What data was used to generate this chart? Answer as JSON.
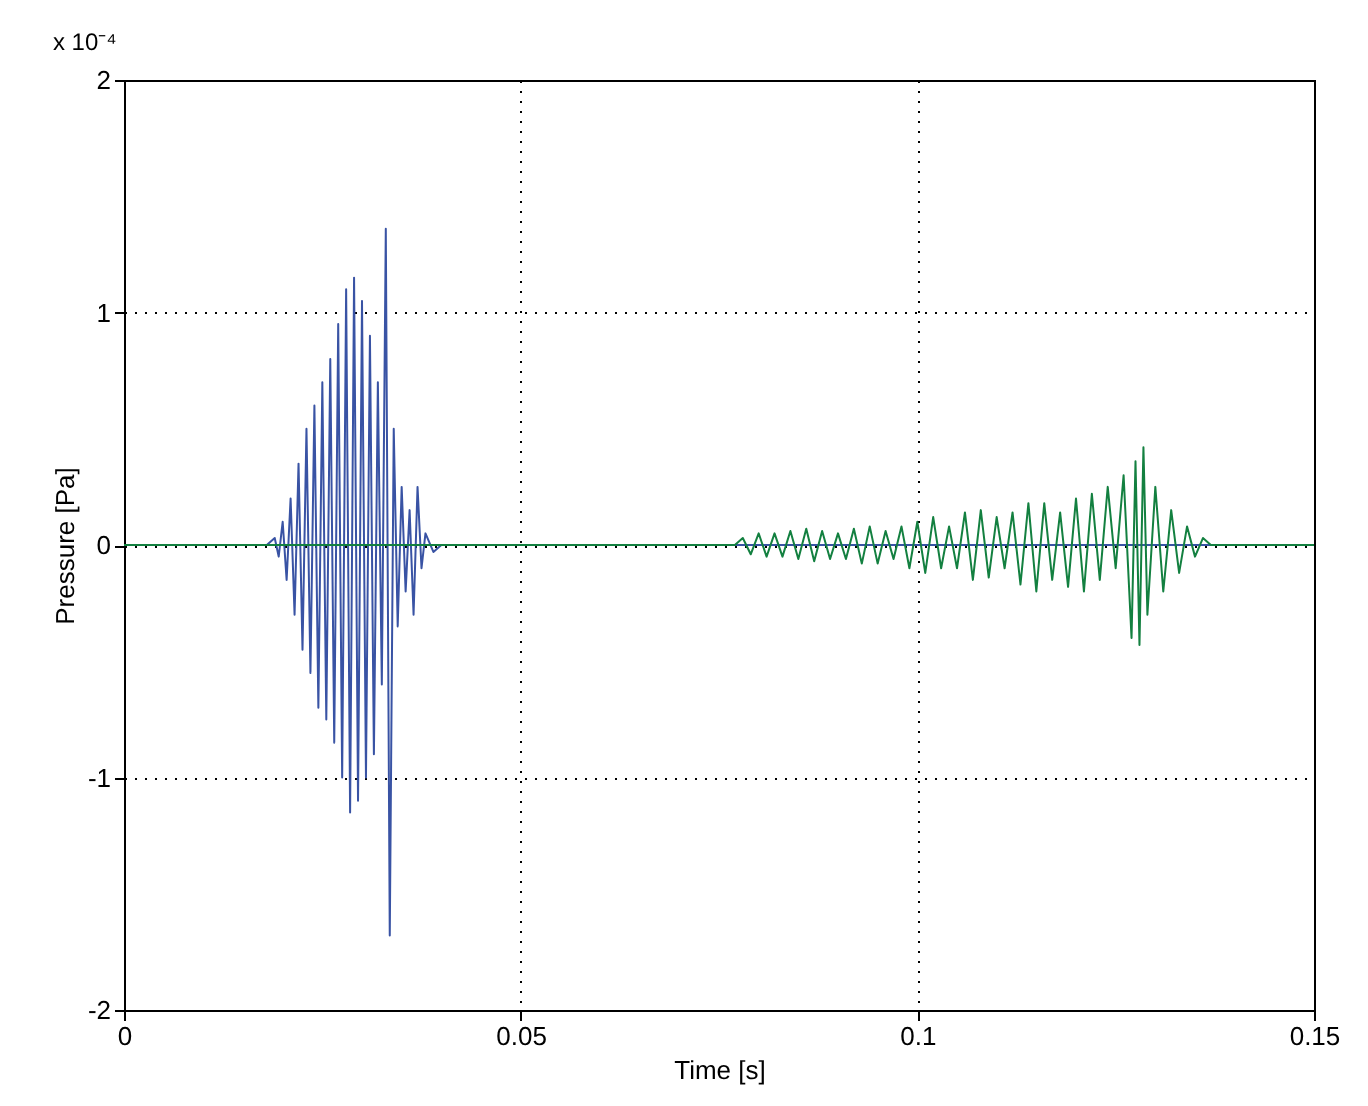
{
  "chart_data": {
    "type": "line",
    "xlabel": "Time [s]",
    "ylabel": "Pressure [Pa]",
    "annotations": [
      "x 10⁻⁴"
    ],
    "xlim": [
      0,
      0.15
    ],
    "xticks": [
      0,
      0.05,
      0.1,
      0.15
    ],
    "ylim": [
      -2,
      2
    ],
    "yticks": [
      -2,
      -1,
      0,
      1,
      2
    ],
    "grid": true,
    "legend": false,
    "line_style": "solid",
    "marker": "none",
    "series": [
      {
        "color": "#3953a4",
        "x": [
          0,
          0.01,
          0.018,
          0.019,
          0.0195,
          0.02,
          0.0205,
          0.021,
          0.0215,
          0.022,
          0.0225,
          0.023,
          0.0235,
          0.024,
          0.0245,
          0.025,
          0.0255,
          0.026,
          0.0265,
          0.027,
          0.0275,
          0.028,
          0.0285,
          0.029,
          0.0295,
          0.03,
          0.0305,
          0.031,
          0.0315,
          0.032,
          0.0325,
          0.033,
          0.0335,
          0.034,
          0.0345,
          0.035,
          0.0355,
          0.036,
          0.0365,
          0.037,
          0.0375,
          0.038,
          0.039,
          0.04,
          0.15
        ],
        "values": [
          0,
          0,
          0,
          0.03,
          -0.05,
          0.1,
          -0.15,
          0.2,
          -0.3,
          0.35,
          -0.45,
          0.5,
          -0.55,
          0.6,
          -0.7,
          0.7,
          -0.75,
          0.8,
          -0.85,
          0.95,
          -1.0,
          1.1,
          -1.15,
          1.15,
          -1.1,
          1.05,
          -1.0,
          0.9,
          -0.9,
          0.7,
          -0.6,
          1.36,
          -1.68,
          0.5,
          -0.35,
          0.25,
          -0.2,
          0.15,
          -0.3,
          0.25,
          -0.1,
          0.05,
          -0.03,
          0,
          0
        ]
      },
      {
        "color": "#138040",
        "x": [
          0,
          0.077,
          0.078,
          0.079,
          0.08,
          0.081,
          0.082,
          0.083,
          0.084,
          0.085,
          0.086,
          0.087,
          0.088,
          0.089,
          0.09,
          0.091,
          0.092,
          0.093,
          0.094,
          0.095,
          0.096,
          0.097,
          0.098,
          0.099,
          0.1,
          0.101,
          0.102,
          0.103,
          0.104,
          0.105,
          0.106,
          0.107,
          0.108,
          0.109,
          0.11,
          0.111,
          0.112,
          0.113,
          0.114,
          0.115,
          0.116,
          0.117,
          0.118,
          0.119,
          0.12,
          0.121,
          0.122,
          0.123,
          0.124,
          0.125,
          0.126,
          0.127,
          0.1275,
          0.128,
          0.1285,
          0.129,
          0.13,
          0.131,
          0.132,
          0.133,
          0.134,
          0.135,
          0.136,
          0.137,
          0.15
        ],
        "values": [
          0,
          0,
          0.03,
          -0.04,
          0.05,
          -0.05,
          0.05,
          -0.05,
          0.06,
          -0.06,
          0.07,
          -0.07,
          0.06,
          -0.06,
          0.05,
          -0.06,
          0.07,
          -0.08,
          0.08,
          -0.08,
          0.06,
          -0.06,
          0.08,
          -0.1,
          0.1,
          -0.12,
          0.12,
          -0.1,
          0.08,
          -0.1,
          0.14,
          -0.15,
          0.15,
          -0.14,
          0.12,
          -0.1,
          0.14,
          -0.17,
          0.18,
          -0.2,
          0.18,
          -0.15,
          0.14,
          -0.18,
          0.2,
          -0.2,
          0.22,
          -0.15,
          0.25,
          -0.1,
          0.3,
          -0.4,
          0.36,
          -0.43,
          0.42,
          -0.3,
          0.25,
          -0.2,
          0.15,
          -0.12,
          0.08,
          -0.05,
          0.03,
          0,
          0
        ]
      }
    ]
  }
}
